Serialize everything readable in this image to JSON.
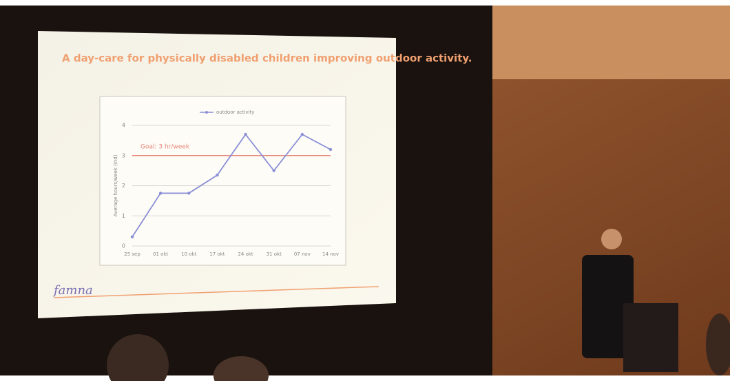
{
  "slide": {
    "title": "A day-care for physically disabled children improving outdoor activity.",
    "footer": "famna"
  },
  "chart_data": {
    "type": "line",
    "categories": [
      "25 sep",
      "01 okt",
      "10 okt",
      "17 okt",
      "24 okt",
      "31 okt",
      "07 nov",
      "14 nov"
    ],
    "series": [
      {
        "name": "outdoor activity",
        "color": "#8a8fd6",
        "values": [
          0.3,
          1.75,
          1.75,
          2.35,
          3.7,
          2.5,
          3.7,
          3.2
        ]
      }
    ],
    "y_label": "Average hours/week (ind)",
    "ylim": [
      0,
      4
    ],
    "yticks": [
      0,
      1,
      2,
      3,
      4
    ],
    "grid": true,
    "legend": "top",
    "goal": {
      "label": "Goal: 3 hr/week",
      "value": 3,
      "color": "#e8857a"
    }
  }
}
